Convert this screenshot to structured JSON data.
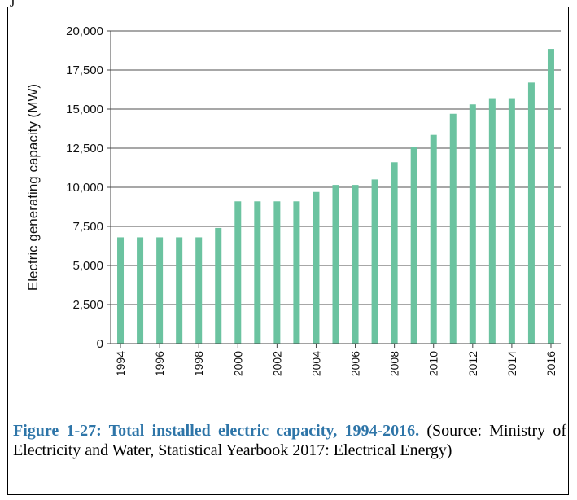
{
  "top_mark": "J",
  "caption": {
    "lead": "Figure 1-27: Total installed electric capacity, 1994-2016.",
    "body": " (Source: Ministry of Electricity and Water, Statistical Yearbook 2017: Electrical Energy)"
  },
  "colors": {
    "bar": "#6bc3a0",
    "grid": "#8a8a8a",
    "axis": "#444444"
  },
  "chart_data": {
    "type": "bar",
    "title": "",
    "xlabel": "",
    "ylabel": "Electric generating capacity (MW)",
    "ylim": [
      0,
      20000
    ],
    "yticks": [
      "0",
      "2,500",
      "5,000",
      "7,500",
      "10,000",
      "12,500",
      "15,000",
      "17,500",
      "20,000"
    ],
    "xtick_labels": [
      "1994",
      "1996",
      "1998",
      "2000",
      "2002",
      "2004",
      "2006",
      "2008",
      "2010",
      "2012",
      "2014",
      "2016"
    ],
    "grid": true,
    "categories": [
      "1994",
      "1995",
      "1996",
      "1997",
      "1998",
      "1999",
      "2000",
      "2001",
      "2002",
      "2003",
      "2004",
      "2005",
      "2006",
      "2007",
      "2008",
      "2009",
      "2010",
      "2011",
      "2012",
      "2013",
      "2014",
      "2015",
      "2016"
    ],
    "values": [
      6800,
      6800,
      6800,
      6800,
      6800,
      7400,
      9100,
      9100,
      9100,
      9100,
      9700,
      10150,
      10150,
      10500,
      11600,
      12550,
      13350,
      14700,
      15300,
      15700,
      15700,
      16700,
      18850
    ]
  }
}
